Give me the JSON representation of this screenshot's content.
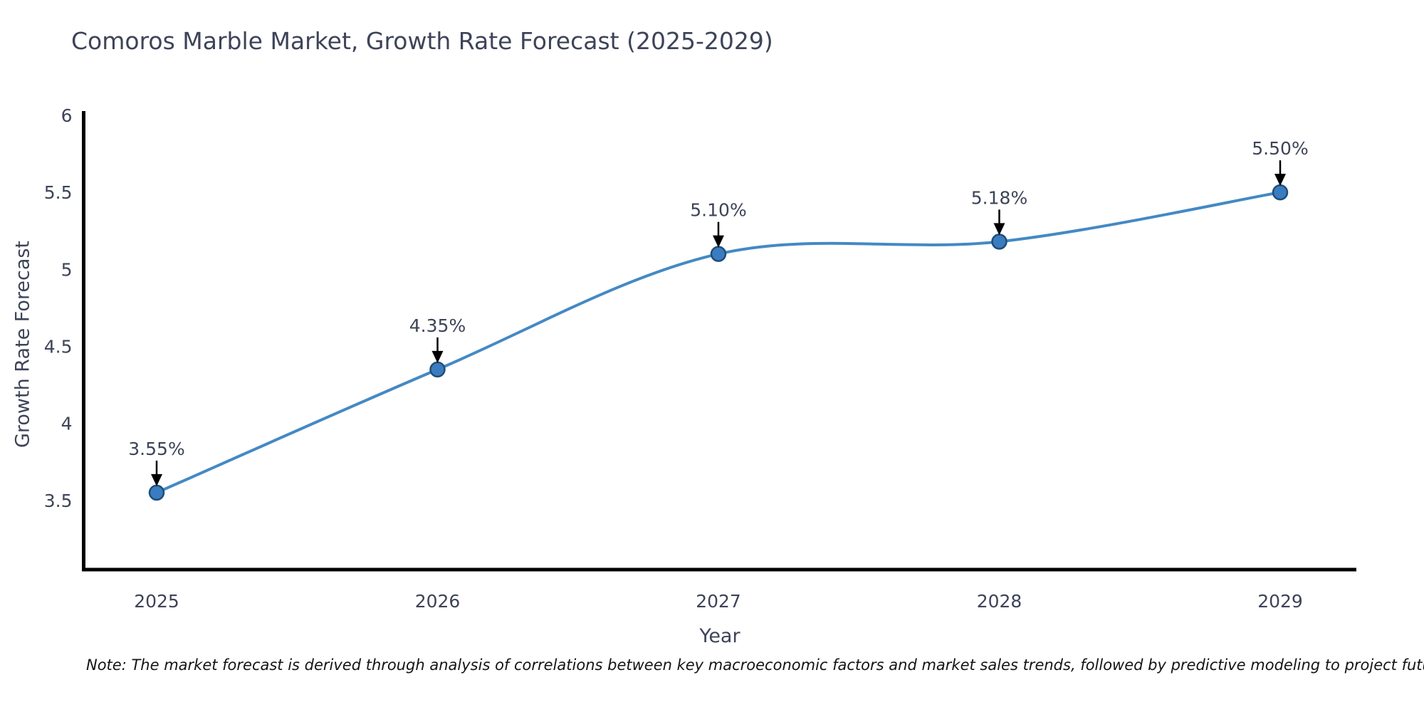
{
  "title": "Comoros Marble Market, Growth Rate Forecast (2025-2029)",
  "footnote": "Note: The market forecast is derived through analysis of correlations between key macroeconomic factors and market sales trends, followed by predictive modeling to project future sales",
  "chart_data": {
    "type": "line",
    "title": "Comoros Marble Market, Growth Rate Forecast (2025-2029)",
    "xlabel": "Year",
    "ylabel": "Growth Rate Forecast",
    "categories": [
      "2025",
      "2026",
      "2027",
      "2028",
      "2029"
    ],
    "values": [
      3.55,
      4.35,
      5.1,
      5.18,
      5.5
    ],
    "point_labels": [
      "3.55%",
      "4.35%",
      "5.10%",
      "5.18%",
      "5.50%"
    ],
    "yticks": [
      3.5,
      4,
      4.5,
      5,
      5.5,
      6
    ],
    "ylim": [
      3.05,
      6.02
    ],
    "grid": false,
    "legend": "none",
    "line_style": "smooth-spline",
    "marker": "circle",
    "annotation_arrows": true,
    "colors": {
      "line": "#4489c4",
      "marker_fill": "#3a7cbf",
      "marker_edge": "#1f4e79",
      "arrow": "#000000",
      "axis": "#000000",
      "tick_text": "#3d4458",
      "annotation_text": "#3d4458",
      "background": "#ffffff"
    }
  }
}
